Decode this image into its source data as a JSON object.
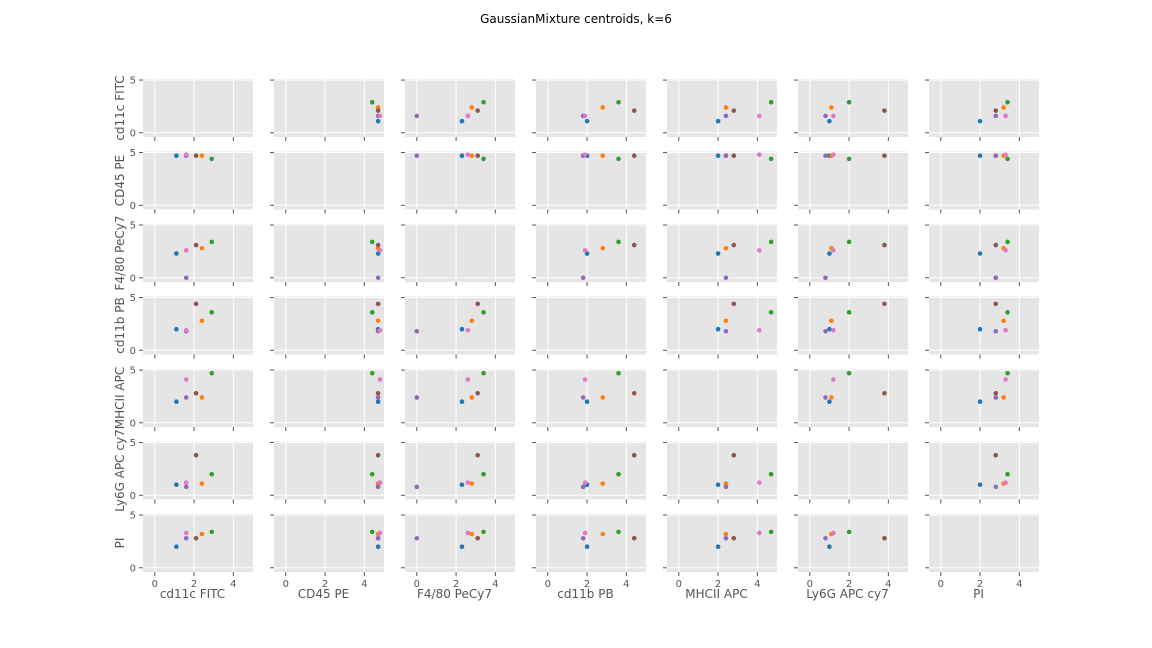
{
  "chart_data": {
    "type": "scatter",
    "title": "GaussianMixture centroids, k=6",
    "variables": [
      "cd11c FITC",
      "CD45 PE",
      "F4/80 PeCy7",
      "cd11b PB",
      "MHCII APC",
      "Ly6G APC cy7",
      "PI"
    ],
    "x_ticks": [
      "0",
      "2",
      "4"
    ],
    "y_ticks": [
      "0",
      "5"
    ],
    "xlim": [
      -0.6,
      5.0
    ],
    "ylim": [
      -0.4,
      5.1
    ],
    "grid": true,
    "colors": [
      "#1f77b4",
      "#ff7f0e",
      "#2ca02c",
      "#8c564b",
      "#9467bd",
      "#e377c2"
    ],
    "centroids": [
      [
        1.1,
        4.7,
        2.3,
        2.0,
        2.0,
        1.0,
        2.0
      ],
      [
        2.4,
        4.7,
        2.8,
        2.8,
        2.4,
        1.1,
        3.2
      ],
      [
        2.9,
        4.4,
        3.4,
        3.6,
        4.7,
        2.0,
        3.4
      ],
      [
        2.1,
        4.7,
        3.1,
        4.4,
        2.8,
        3.8,
        2.8
      ],
      [
        1.6,
        4.7,
        0.0,
        1.8,
        2.4,
        0.8,
        2.8
      ],
      [
        1.6,
        4.8,
        2.6,
        1.9,
        4.1,
        1.2,
        3.3
      ]
    ]
  }
}
